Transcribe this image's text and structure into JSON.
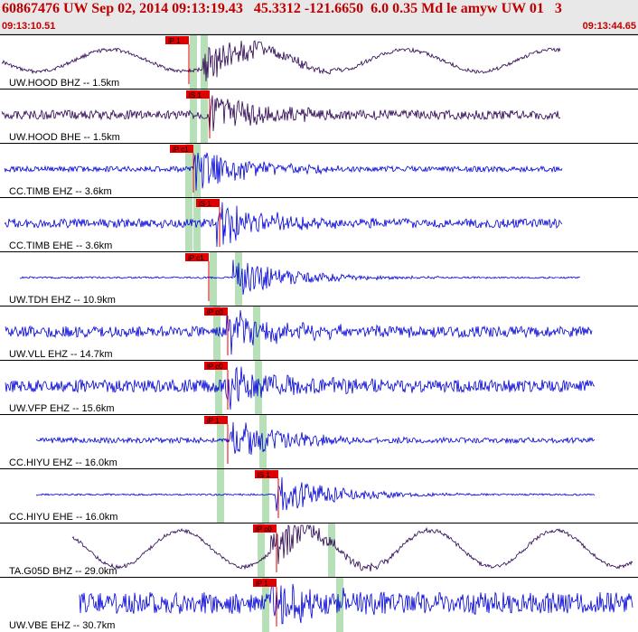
{
  "header": {
    "title": "60867476 UW Sep 02, 2014 09:13:19.43   45.3312 -121.6650  6.0 0.35 Md le amyw UW 01   3",
    "time_left": "09:13:10.51",
    "time_right": "09:13:44.65"
  },
  "colors": {
    "header_text": "#c00000",
    "trace_dark": "#2a0050",
    "trace_blue": "#0000d8",
    "pick": "#e00000",
    "band": "#b8e0b8"
  },
  "traces": [
    {
      "label": "UW.HOOD BHZ -- 1.5km",
      "color": "dark",
      "style": "wave",
      "start": 2,
      "end": 620,
      "amp": 12,
      "onset": 225,
      "pick_text": "iP 1",
      "pick_pos": 183,
      "band": 210,
      "band2": 222
    },
    {
      "label": "UW.HOOD BHE -- 1.5km",
      "color": "dark",
      "style": "noise",
      "start": 2,
      "end": 620,
      "amp": 5,
      "onset": 232,
      "pick_text": "iS 1",
      "pick_pos": 206,
      "band": 210,
      "band2": 222
    },
    {
      "label": "CC.TIMB EHZ -- 3.6km",
      "color": "blue",
      "style": "noise",
      "start": 5,
      "end": 622,
      "amp": 3,
      "onset": 215,
      "pick_text": "iP c1",
      "pick_pos": 188,
      "band": 205,
      "band2": 214
    },
    {
      "label": "CC.TIMB EHE -- 3.6km",
      "color": "blue",
      "style": "noise",
      "start": 5,
      "end": 622,
      "amp": 5,
      "onset": 240,
      "pick_text": "iS 1",
      "pick_pos": 217,
      "band": 205,
      "band2": 214
    },
    {
      "label": "UW.TDH EHZ -- 10.9km",
      "color": "blue",
      "style": "noise",
      "start": 22,
      "end": 642,
      "amp": 1,
      "onset": 258,
      "pick_text": "iP c1",
      "pick_pos": 205,
      "band": 232,
      "band2": 260
    },
    {
      "label": "UW.VLL EHZ -- 14.7km",
      "color": "blue",
      "style": "noise",
      "start": 6,
      "end": 655,
      "amp": 6,
      "onset": 250,
      "pick_text": "iP c0",
      "pick_pos": 226,
      "band": 236,
      "band2": 280
    },
    {
      "label": "UW.VFP EHZ -- 15.6km",
      "color": "blue",
      "style": "noise",
      "start": 6,
      "end": 658,
      "amp": 7,
      "onset": 250,
      "pick_text": "iP c0",
      "pick_pos": 226,
      "band": 238,
      "band2": 282
    },
    {
      "label": "CC.HIYU EHZ -- 16.0km",
      "color": "blue",
      "style": "noise",
      "start": 40,
      "end": 658,
      "amp": 3,
      "onset": 255,
      "pick_text": "iP 1",
      "pick_pos": 226,
      "band": 240,
      "band2": 287
    },
    {
      "label": "CC.HIYU EHE -- 16.0km",
      "color": "blue",
      "style": "noise",
      "start": 40,
      "end": 658,
      "amp": 1,
      "onset": 305,
      "pick_text": "iS 1",
      "pick_pos": 282,
      "band": 240,
      "band2": 290
    },
    {
      "label": "TA.G05D BHZ -- 29.0km",
      "color": "dark",
      "style": "wave",
      "start": 80,
      "end": 700,
      "amp": 20,
      "onset": 300,
      "pick_text": "iP c0",
      "pick_pos": 280,
      "band": 285,
      "band2": 363
    },
    {
      "label": "UW.VBE EHZ -- 30.7km",
      "color": "blue",
      "style": "noise",
      "start": 88,
      "end": 700,
      "amp": 12,
      "onset": 300,
      "pick_text": "iP 1",
      "pick_pos": 280,
      "band": 290,
      "band2": 372
    }
  ]
}
